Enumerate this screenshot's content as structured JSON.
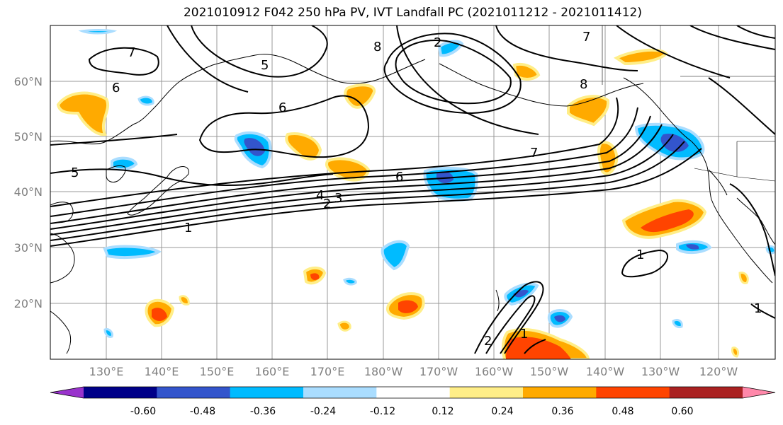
{
  "title": "2021010912 F042 250 hPa PV, IVT Landfall PC (2021011212 - 2021011412)",
  "lat_labels": [
    "60°N",
    "50°N",
    "40°N",
    "30°N",
    "20°N"
  ],
  "lon_labels": [
    "130°E",
    "140°E",
    "150°E",
    "160°E",
    "170°E",
    "180°W",
    "170°W",
    "160°W",
    "150°W",
    "140°W",
    "130°W",
    "120°W"
  ],
  "colorbar": {
    "colors": [
      "#9933cc",
      "#000088",
      "#3355cc",
      "#00bbff",
      "#aaddff",
      "#ffffff",
      "#ffee88",
      "#ffaa00",
      "#ff4400",
      "#aa2222",
      "#ff88aa"
    ],
    "tick_labels": [
      "-0.60",
      "-0.48",
      "-0.36",
      "-0.24",
      "-0.12",
      "0.12",
      "0.24",
      "0.36",
      "0.48",
      "0.60"
    ]
  },
  "contour_labels": [
    "7",
    "6",
    "5",
    "8",
    "7",
    "8",
    "7",
    "6",
    "5",
    "6",
    "4",
    "3",
    "2",
    "1",
    "1",
    "2",
    "2",
    "1",
    "1"
  ]
}
